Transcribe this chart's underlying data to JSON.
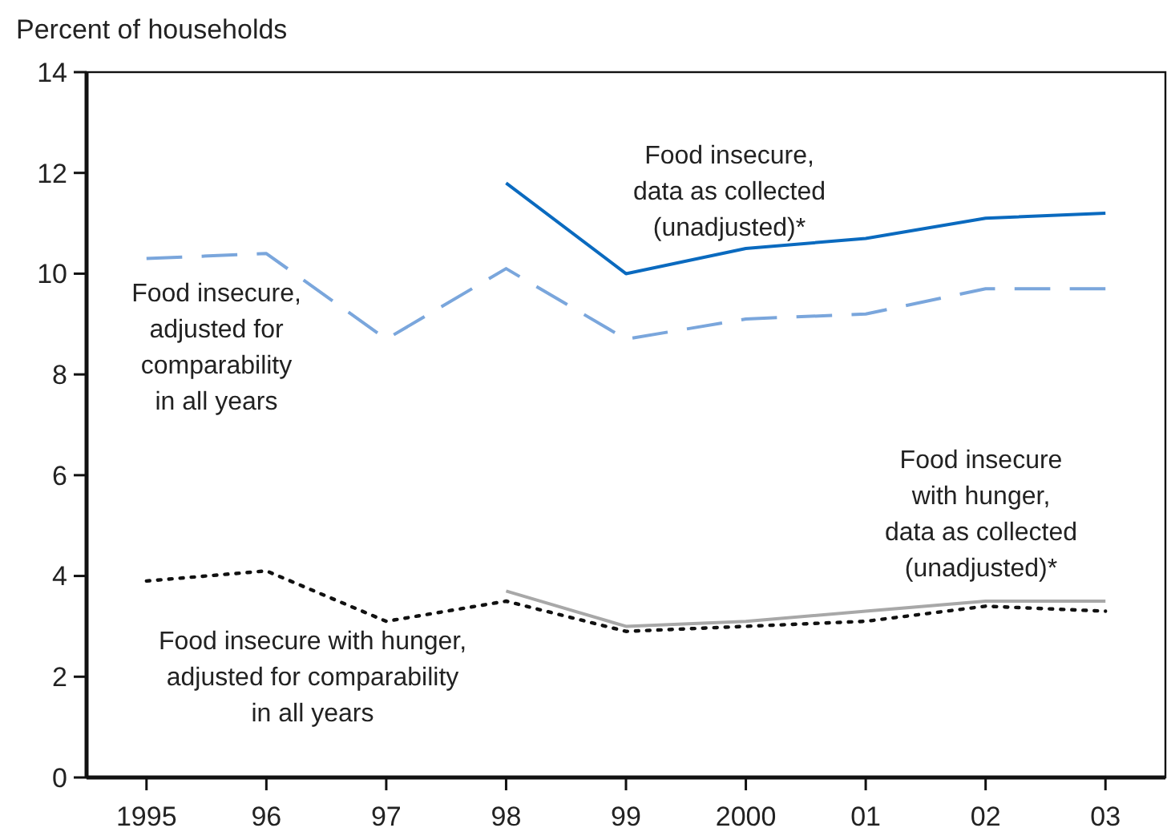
{
  "chart_data": {
    "type": "line",
    "ylabel": "Percent of households",
    "categories": [
      "1995",
      "96",
      "97",
      "98",
      "99",
      "2000",
      "01",
      "02",
      "03"
    ],
    "ylim": [
      0,
      14
    ],
    "yticks": [
      0,
      2,
      4,
      6,
      8,
      10,
      12,
      14
    ],
    "grid": false,
    "series": [
      {
        "name": "Food insecure,\nadjusted for\ncomparability\nin all years",
        "color": "#7aa6dc",
        "line_style": "dashed",
        "values": [
          10.3,
          10.4,
          8.7,
          10.1,
          8.7,
          9.1,
          9.2,
          9.7,
          9.7
        ]
      },
      {
        "name": "Food insecure,\ndata as collected\n(unadjusted)*",
        "color": "#0a6abf",
        "line_style": "solid",
        "values": [
          null,
          null,
          null,
          11.8,
          10.0,
          10.5,
          10.7,
          11.1,
          11.2
        ]
      },
      {
        "name": "Food insecure with hunger,\nadjusted for comparability\nin all years",
        "color": "#111111",
        "line_style": "dotted",
        "values": [
          3.9,
          4.1,
          3.1,
          3.5,
          2.9,
          3.0,
          3.1,
          3.4,
          3.3
        ]
      },
      {
        "name": "Food insecure\nwith hunger,\ndata as collected\n(unadjusted)*",
        "color": "#a8a8a8",
        "line_style": "solid",
        "values": [
          null,
          null,
          null,
          3.7,
          3.0,
          3.1,
          3.3,
          3.5,
          3.5
        ]
      }
    ]
  }
}
